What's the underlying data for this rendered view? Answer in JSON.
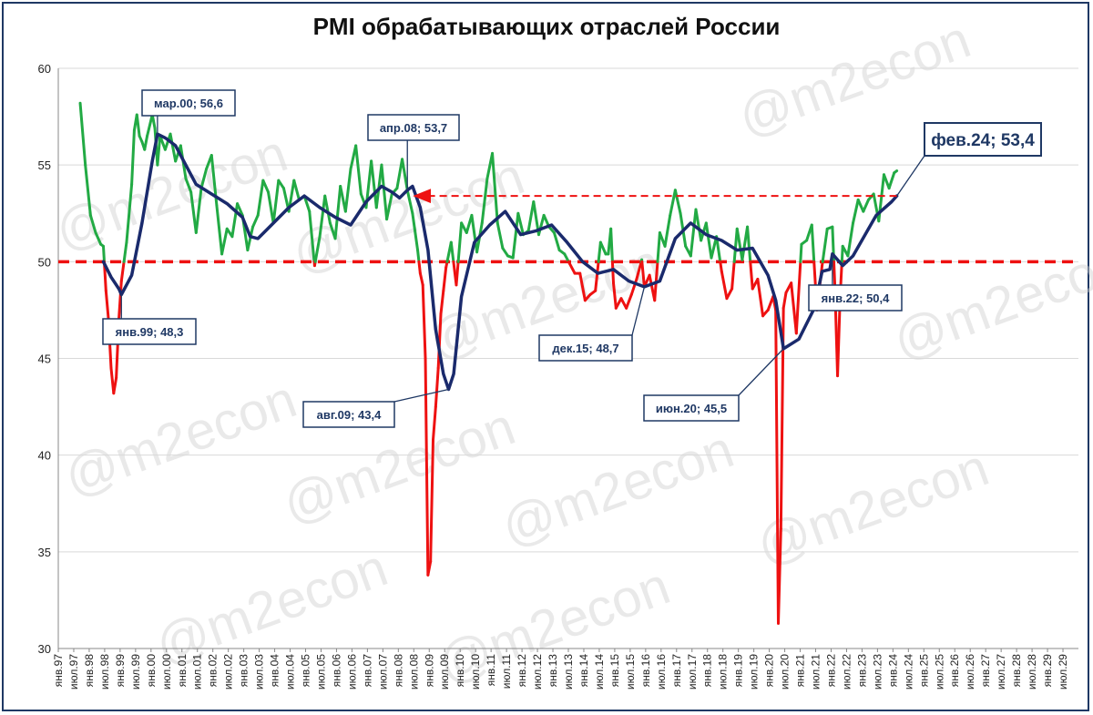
{
  "title": "PMI обрабатывающих отраслей России",
  "watermark": "@m2econ",
  "colors": {
    "above": "#22aa44",
    "below": "#ee1111",
    "trend": "#1a2a6c",
    "threshold": "#ee1111",
    "border": "#1f3864",
    "grid": "#d9d9d9"
  },
  "chart_data": {
    "type": "line",
    "title": "PMI обрабатывающих отраслей России",
    "ylim": [
      30,
      60
    ],
    "yticks": [
      30,
      35,
      40,
      45,
      50,
      55,
      60
    ],
    "threshold": 50,
    "x_range": [
      "1997-01",
      "2029-12"
    ],
    "x_tick_labels": [
      "янв.97",
      "июл.97",
      "янв.98",
      "июл.98",
      "янв.99",
      "июл.99",
      "янв.00",
      "июл.00",
      "янв.01",
      "июл.01",
      "янв.02",
      "июл.02",
      "янв.03",
      "июл.03",
      "янв.04",
      "июл.04",
      "янв.05",
      "июл.05",
      "янв.06",
      "июл.06",
      "янв.07",
      "июл.07",
      "янв.08",
      "июл.08",
      "янв.09",
      "июл.09",
      "янв.10",
      "июл.10",
      "янв.11",
      "июл.11",
      "янв.12",
      "июл.12",
      "янв.13",
      "июл.13",
      "янв.14",
      "июл.14",
      "янв.15",
      "июл.15",
      "янв.16",
      "июл.16",
      "янв.17",
      "июл.17",
      "янв.18",
      "июл.18",
      "янв.19",
      "июл.19",
      "янв.20",
      "июл.20",
      "янв.21",
      "июл.21",
      "янв.22",
      "июл.22",
      "янв.23",
      "июл.23",
      "янв.24",
      "июл.24",
      "янв.25",
      "июл.25",
      "янв.26",
      "июл.26",
      "янв.27",
      "июл.27",
      "янв.28",
      "июл.28",
      "янв.29",
      "июл.29"
    ],
    "grid": true,
    "series": [
      {
        "color_above": "#22aa44",
        "color_below": "#ee1111",
        "points": [
          [
            "1997-09",
            58.2
          ],
          [
            "1997-11",
            55.0
          ],
          [
            "1998-01",
            52.4
          ],
          [
            "1998-03",
            51.5
          ],
          [
            "1998-05",
            50.9
          ],
          [
            "1998-06",
            50.8
          ],
          [
            "1998-07",
            48.5
          ],
          [
            "1998-08",
            47.0
          ],
          [
            "1998-09",
            44.5
          ],
          [
            "1998-10",
            43.2
          ],
          [
            "1998-11",
            44.0
          ],
          [
            "1998-12",
            47.0
          ],
          [
            "1999-01",
            49.0
          ],
          [
            "1999-03",
            51.0
          ],
          [
            "1999-05",
            54.0
          ],
          [
            "1999-06",
            56.8
          ],
          [
            "1999-07",
            57.6
          ],
          [
            "1999-08",
            56.5
          ],
          [
            "1999-09",
            56.2
          ],
          [
            "1999-10",
            55.8
          ],
          [
            "1999-11",
            56.5
          ],
          [
            "2000-01",
            57.6
          ],
          [
            "2000-02",
            56.9
          ],
          [
            "2000-03",
            55.0
          ],
          [
            "2000-04",
            56.5
          ],
          [
            "2000-06",
            55.8
          ],
          [
            "2000-08",
            56.6
          ],
          [
            "2000-10",
            55.2
          ],
          [
            "2000-12",
            56.0
          ],
          [
            "2001-02",
            54.3
          ],
          [
            "2001-04",
            53.6
          ],
          [
            "2001-06",
            51.5
          ],
          [
            "2001-08",
            53.8
          ],
          [
            "2001-10",
            54.8
          ],
          [
            "2001-12",
            55.5
          ],
          [
            "2002-02",
            52.9
          ],
          [
            "2002-04",
            50.4
          ],
          [
            "2002-06",
            51.7
          ],
          [
            "2002-08",
            51.3
          ],
          [
            "2002-10",
            53.0
          ],
          [
            "2002-12",
            52.4
          ],
          [
            "2003-02",
            50.6
          ],
          [
            "2003-04",
            51.8
          ],
          [
            "2003-06",
            52.4
          ],
          [
            "2003-08",
            54.2
          ],
          [
            "2003-10",
            53.6
          ],
          [
            "2003-12",
            52.0
          ],
          [
            "2004-02",
            54.2
          ],
          [
            "2004-04",
            53.8
          ],
          [
            "2004-06",
            52.6
          ],
          [
            "2004-08",
            54.2
          ],
          [
            "2004-10",
            53.2
          ],
          [
            "2004-12",
            53.4
          ],
          [
            "2005-02",
            52.6
          ],
          [
            "2005-04",
            49.8
          ],
          [
            "2005-06",
            51.3
          ],
          [
            "2005-08",
            53.4
          ],
          [
            "2005-10",
            52.0
          ],
          [
            "2005-12",
            51.2
          ],
          [
            "2006-02",
            53.9
          ],
          [
            "2006-04",
            52.6
          ],
          [
            "2006-06",
            54.8
          ],
          [
            "2006-08",
            56.0
          ],
          [
            "2006-10",
            53.5
          ],
          [
            "2006-12",
            52.8
          ],
          [
            "2007-02",
            55.2
          ],
          [
            "2007-04",
            52.8
          ],
          [
            "2007-06",
            55.0
          ],
          [
            "2007-08",
            52.2
          ],
          [
            "2007-10",
            53.5
          ],
          [
            "2007-12",
            53.8
          ],
          [
            "2008-02",
            55.3
          ],
          [
            "2008-04",
            53.7
          ],
          [
            "2008-06",
            52.5
          ],
          [
            "2008-08",
            50.6
          ],
          [
            "2008-09",
            49.4
          ],
          [
            "2008-10",
            48.8
          ],
          [
            "2008-11",
            45.0
          ],
          [
            "2008-12",
            33.8
          ],
          [
            "2009-01",
            34.5
          ],
          [
            "2009-02",
            40.8
          ],
          [
            "2009-03",
            42.5
          ],
          [
            "2009-04",
            44.5
          ],
          [
            "2009-05",
            47.3
          ],
          [
            "2009-06",
            48.5
          ],
          [
            "2009-07",
            49.7
          ],
          [
            "2009-09",
            51.0
          ],
          [
            "2009-11",
            48.8
          ],
          [
            "2010-01",
            52.0
          ],
          [
            "2010-03",
            51.5
          ],
          [
            "2010-05",
            52.4
          ],
          [
            "2010-07",
            50.5
          ],
          [
            "2010-09",
            52.0
          ],
          [
            "2010-11",
            54.3
          ],
          [
            "2011-01",
            55.6
          ],
          [
            "2011-03",
            52.0
          ],
          [
            "2011-05",
            50.7
          ],
          [
            "2011-07",
            50.3
          ],
          [
            "2011-09",
            50.2
          ],
          [
            "2011-11",
            52.5
          ],
          [
            "2012-01",
            51.4
          ],
          [
            "2012-03",
            51.6
          ],
          [
            "2012-05",
            53.1
          ],
          [
            "2012-07",
            51.4
          ],
          [
            "2012-09",
            52.4
          ],
          [
            "2012-11",
            51.8
          ],
          [
            "2013-01",
            51.5
          ],
          [
            "2013-03",
            50.6
          ],
          [
            "2013-05",
            50.4
          ],
          [
            "2013-07",
            49.9
          ],
          [
            "2013-09",
            49.4
          ],
          [
            "2013-11",
            49.4
          ],
          [
            "2014-01",
            48.0
          ],
          [
            "2014-03",
            48.3
          ],
          [
            "2014-05",
            48.5
          ],
          [
            "2014-07",
            51.0
          ],
          [
            "2014-09",
            50.4
          ],
          [
            "2014-10",
            50.4
          ],
          [
            "2014-11",
            51.7
          ],
          [
            "2014-12",
            48.9
          ],
          [
            "2015-01",
            47.6
          ],
          [
            "2015-03",
            48.1
          ],
          [
            "2015-05",
            47.6
          ],
          [
            "2015-07",
            48.3
          ],
          [
            "2015-09",
            49.1
          ],
          [
            "2015-11",
            50.1
          ],
          [
            "2015-12",
            48.7
          ],
          [
            "2016-02",
            49.3
          ],
          [
            "2016-04",
            48.0
          ],
          [
            "2016-06",
            51.5
          ],
          [
            "2016-08",
            50.8
          ],
          [
            "2016-10",
            52.4
          ],
          [
            "2016-12",
            53.7
          ],
          [
            "2017-02",
            52.5
          ],
          [
            "2017-04",
            50.8
          ],
          [
            "2017-06",
            50.3
          ],
          [
            "2017-08",
            52.7
          ],
          [
            "2017-10",
            51.1
          ],
          [
            "2017-12",
            52.0
          ],
          [
            "2018-02",
            50.2
          ],
          [
            "2018-04",
            51.3
          ],
          [
            "2018-06",
            49.5
          ],
          [
            "2018-08",
            48.1
          ],
          [
            "2018-10",
            48.6
          ],
          [
            "2018-12",
            51.7
          ],
          [
            "2019-02",
            50.1
          ],
          [
            "2019-04",
            51.8
          ],
          [
            "2019-06",
            48.6
          ],
          [
            "2019-08",
            49.1
          ],
          [
            "2019-10",
            47.2
          ],
          [
            "2019-12",
            47.5
          ],
          [
            "2020-02",
            48.2
          ],
          [
            "2020-03",
            47.5
          ],
          [
            "2020-04",
            31.3
          ],
          [
            "2020-05",
            36.2
          ],
          [
            "2020-06",
            47.6
          ],
          [
            "2020-07",
            48.4
          ],
          [
            "2020-09",
            48.9
          ],
          [
            "2020-11",
            46.3
          ],
          [
            "2021-01",
            50.9
          ],
          [
            "2021-03",
            51.1
          ],
          [
            "2021-05",
            51.9
          ],
          [
            "2021-07",
            47.5
          ],
          [
            "2021-09",
            49.8
          ],
          [
            "2021-11",
            51.7
          ],
          [
            "2022-01",
            51.8
          ],
          [
            "2022-02",
            48.6
          ],
          [
            "2022-03",
            44.1
          ],
          [
            "2022-04",
            48.2
          ],
          [
            "2022-05",
            50.8
          ],
          [
            "2022-07",
            50.3
          ],
          [
            "2022-09",
            52.0
          ],
          [
            "2022-11",
            53.2
          ],
          [
            "2023-01",
            52.6
          ],
          [
            "2023-03",
            53.2
          ],
          [
            "2023-05",
            53.5
          ],
          [
            "2023-07",
            52.1
          ],
          [
            "2023-09",
            54.5
          ],
          [
            "2023-11",
            53.8
          ],
          [
            "2024-01",
            54.6
          ],
          [
            "2024-02",
            54.7
          ]
        ]
      },
      {
        "name": "trend",
        "color": "#1a2a6c",
        "points": [
          [
            "1998-06",
            50.0
          ],
          [
            "1998-09",
            49.2
          ],
          [
            "1998-12",
            48.6
          ],
          [
            "1999-01",
            48.3
          ],
          [
            "1999-05",
            49.3
          ],
          [
            "1999-09",
            52.0
          ],
          [
            "2000-01",
            55.2
          ],
          [
            "2000-03",
            56.6
          ],
          [
            "2000-06",
            56.4
          ],
          [
            "2000-10",
            56.0
          ],
          [
            "2001-02",
            55.0
          ],
          [
            "2001-06",
            54.0
          ],
          [
            "2001-12",
            53.5
          ],
          [
            "2002-06",
            53.0
          ],
          [
            "2002-12",
            52.3
          ],
          [
            "2003-03",
            51.3
          ],
          [
            "2003-06",
            51.2
          ],
          [
            "2003-12",
            52.0
          ],
          [
            "2004-06",
            52.8
          ],
          [
            "2004-12",
            53.4
          ],
          [
            "2005-06",
            52.8
          ],
          [
            "2005-12",
            52.3
          ],
          [
            "2006-06",
            51.9
          ],
          [
            "2006-12",
            53.1
          ],
          [
            "2007-06",
            53.9
          ],
          [
            "2007-10",
            53.6
          ],
          [
            "2008-01",
            53.3
          ],
          [
            "2008-04",
            53.7
          ],
          [
            "2008-06",
            53.9
          ],
          [
            "2008-09",
            52.8
          ],
          [
            "2008-12",
            50.6
          ],
          [
            "2009-03",
            46.5
          ],
          [
            "2009-06",
            44.2
          ],
          [
            "2009-08",
            43.4
          ],
          [
            "2009-10",
            44.2
          ],
          [
            "2010-01",
            48.2
          ],
          [
            "2010-06",
            51.0
          ],
          [
            "2010-12",
            51.9
          ],
          [
            "2011-06",
            52.6
          ],
          [
            "2011-12",
            51.4
          ],
          [
            "2012-06",
            51.6
          ],
          [
            "2012-12",
            51.9
          ],
          [
            "2013-06",
            51.0
          ],
          [
            "2013-12",
            50.0
          ],
          [
            "2014-06",
            49.4
          ],
          [
            "2014-12",
            49.6
          ],
          [
            "2015-06",
            49.0
          ],
          [
            "2015-12",
            48.7
          ],
          [
            "2016-06",
            49.0
          ],
          [
            "2016-12",
            51.2
          ],
          [
            "2017-06",
            52.0
          ],
          [
            "2017-12",
            51.4
          ],
          [
            "2018-06",
            51.1
          ],
          [
            "2018-12",
            50.6
          ],
          [
            "2019-06",
            50.7
          ],
          [
            "2019-12",
            49.3
          ],
          [
            "2020-03",
            48.0
          ],
          [
            "2020-06",
            45.5
          ],
          [
            "2020-12",
            46.0
          ],
          [
            "2021-06",
            47.6
          ],
          [
            "2021-09",
            49.5
          ],
          [
            "2021-12",
            49.6
          ],
          [
            "2022-01",
            50.4
          ],
          [
            "2022-05",
            49.8
          ],
          [
            "2022-09",
            50.3
          ],
          [
            "2022-12",
            51.0
          ],
          [
            "2023-06",
            52.4
          ],
          [
            "2023-12",
            53.1
          ],
          [
            "2024-02",
            53.4
          ]
        ]
      }
    ],
    "annotations": [
      {
        "text": "мар.00; 56,6",
        "x": "2000-03",
        "y": 56.6,
        "emph": false
      },
      {
        "text": "янв.99; 48,3",
        "x": "1999-01",
        "y": 48.3,
        "emph": false
      },
      {
        "text": "апр.08; 53,7",
        "x": "2008-04",
        "y": 53.7,
        "emph": false
      },
      {
        "text": "авг.09; 43,4",
        "x": "2009-08",
        "y": 43.4,
        "emph": false
      },
      {
        "text": "дек.15; 48,7",
        "x": "2015-12",
        "y": 48.7,
        "emph": false
      },
      {
        "text": "июн.20; 45,5",
        "x": "2020-06",
        "y": 45.5,
        "emph": false
      },
      {
        "text": "янв.22; 50,4",
        "x": "2022-01",
        "y": 50.4,
        "emph": false
      },
      {
        "text": "фев.24; 53,4",
        "x": "2024-02",
        "y": 53.4,
        "emph": true
      }
    ],
    "reference_arrow": {
      "from_x": "2024-02",
      "to_x": "2008-04",
      "y": 53.4
    }
  }
}
